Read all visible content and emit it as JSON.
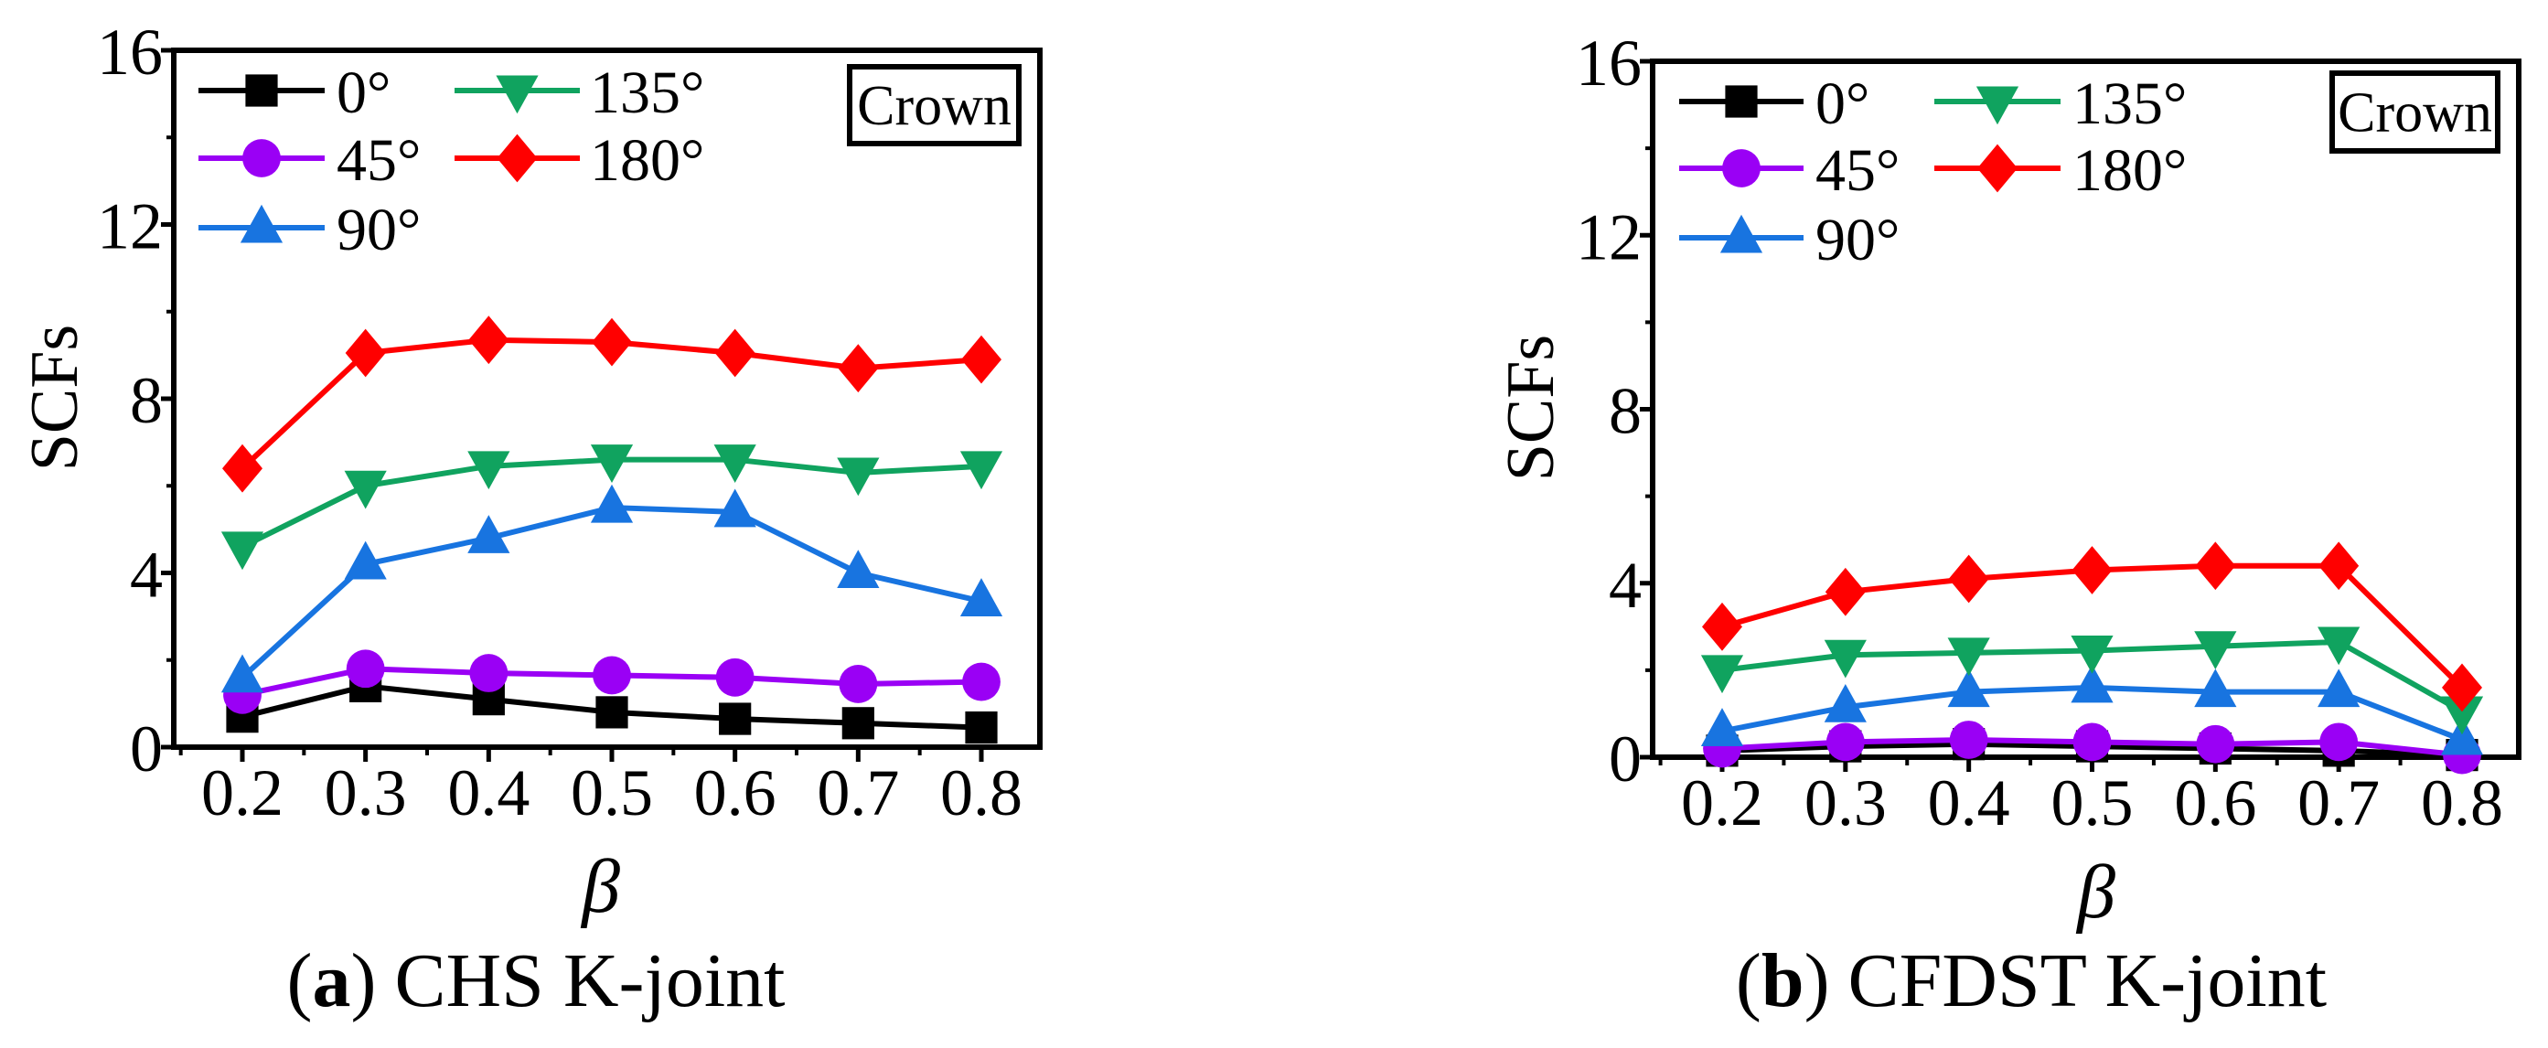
{
  "chart_data": [
    {
      "type": "line",
      "panel_label": "a",
      "caption": "CHS K-joint",
      "xlabel": "β",
      "ylabel": "SCFs",
      "annotation": "Crown",
      "x": [
        0.2,
        0.3,
        0.4,
        0.5,
        0.6,
        0.7,
        0.8
      ],
      "x_tick_labels": [
        "0.2",
        "0.3",
        "0.4",
        "0.5",
        "0.6",
        "0.7",
        "0.8"
      ],
      "ylim": [
        0,
        16
      ],
      "y_ticks": [
        0,
        4,
        8,
        12,
        16
      ],
      "y_tick_labels": [
        "0",
        "4",
        "8",
        "12",
        "16"
      ],
      "legend_placement": "top-left",
      "series": [
        {
          "name": "0°",
          "color": "#000000",
          "marker": "square",
          "values": [
            0.7,
            1.4,
            1.1,
            0.8,
            0.65,
            0.55,
            0.45
          ]
        },
        {
          "name": "45°",
          "color": "#9A00F5",
          "marker": "circle",
          "values": [
            1.2,
            1.8,
            1.7,
            1.65,
            1.6,
            1.45,
            1.5
          ]
        },
        {
          "name": "90°",
          "color": "#1874E0",
          "marker": "triangle-up",
          "values": [
            1.6,
            4.2,
            4.8,
            5.5,
            5.4,
            4.0,
            3.35
          ]
        },
        {
          "name": "135°",
          "color": "#10A35F",
          "marker": "triangle-down",
          "values": [
            4.6,
            6.0,
            6.45,
            6.6,
            6.6,
            6.3,
            6.45
          ]
        },
        {
          "name": "180°",
          "color": "#FF0000",
          "marker": "diamond",
          "values": [
            6.4,
            9.05,
            9.35,
            9.3,
            9.05,
            8.7,
            8.9
          ]
        }
      ]
    },
    {
      "type": "line",
      "panel_label": "b",
      "caption": "CFDST K-joint",
      "xlabel": "β",
      "ylabel": "SCFs",
      "annotation": "Crown",
      "x": [
        0.2,
        0.3,
        0.4,
        0.5,
        0.6,
        0.7,
        0.8
      ],
      "x_tick_labels": [
        "0.2",
        "0.3",
        "0.4",
        "0.5",
        "0.6",
        "0.7",
        "0.8"
      ],
      "ylim": [
        0,
        16
      ],
      "y_ticks": [
        0,
        4,
        8,
        12,
        16
      ],
      "y_tick_labels": [
        "0",
        "4",
        "8",
        "12",
        "16"
      ],
      "legend_placement": "top-left",
      "series": [
        {
          "name": "0°",
          "color": "#000000",
          "marker": "square",
          "values": [
            0.15,
            0.25,
            0.3,
            0.25,
            0.2,
            0.15,
            0.05
          ]
        },
        {
          "name": "45°",
          "color": "#9A00F5",
          "marker": "circle",
          "values": [
            0.2,
            0.35,
            0.4,
            0.35,
            0.3,
            0.35,
            0.05
          ]
        },
        {
          "name": "90°",
          "color": "#1874E0",
          "marker": "triangle-up",
          "values": [
            0.6,
            1.15,
            1.5,
            1.6,
            1.5,
            1.5,
            0.4
          ]
        },
        {
          "name": "135°",
          "color": "#10A35F",
          "marker": "triangle-down",
          "values": [
            2.0,
            2.35,
            2.4,
            2.45,
            2.55,
            2.65,
            1.05
          ]
        },
        {
          "name": "180°",
          "color": "#FF0000",
          "marker": "diamond",
          "values": [
            3.0,
            3.8,
            4.1,
            4.3,
            4.4,
            4.4,
            1.6
          ]
        }
      ]
    }
  ]
}
